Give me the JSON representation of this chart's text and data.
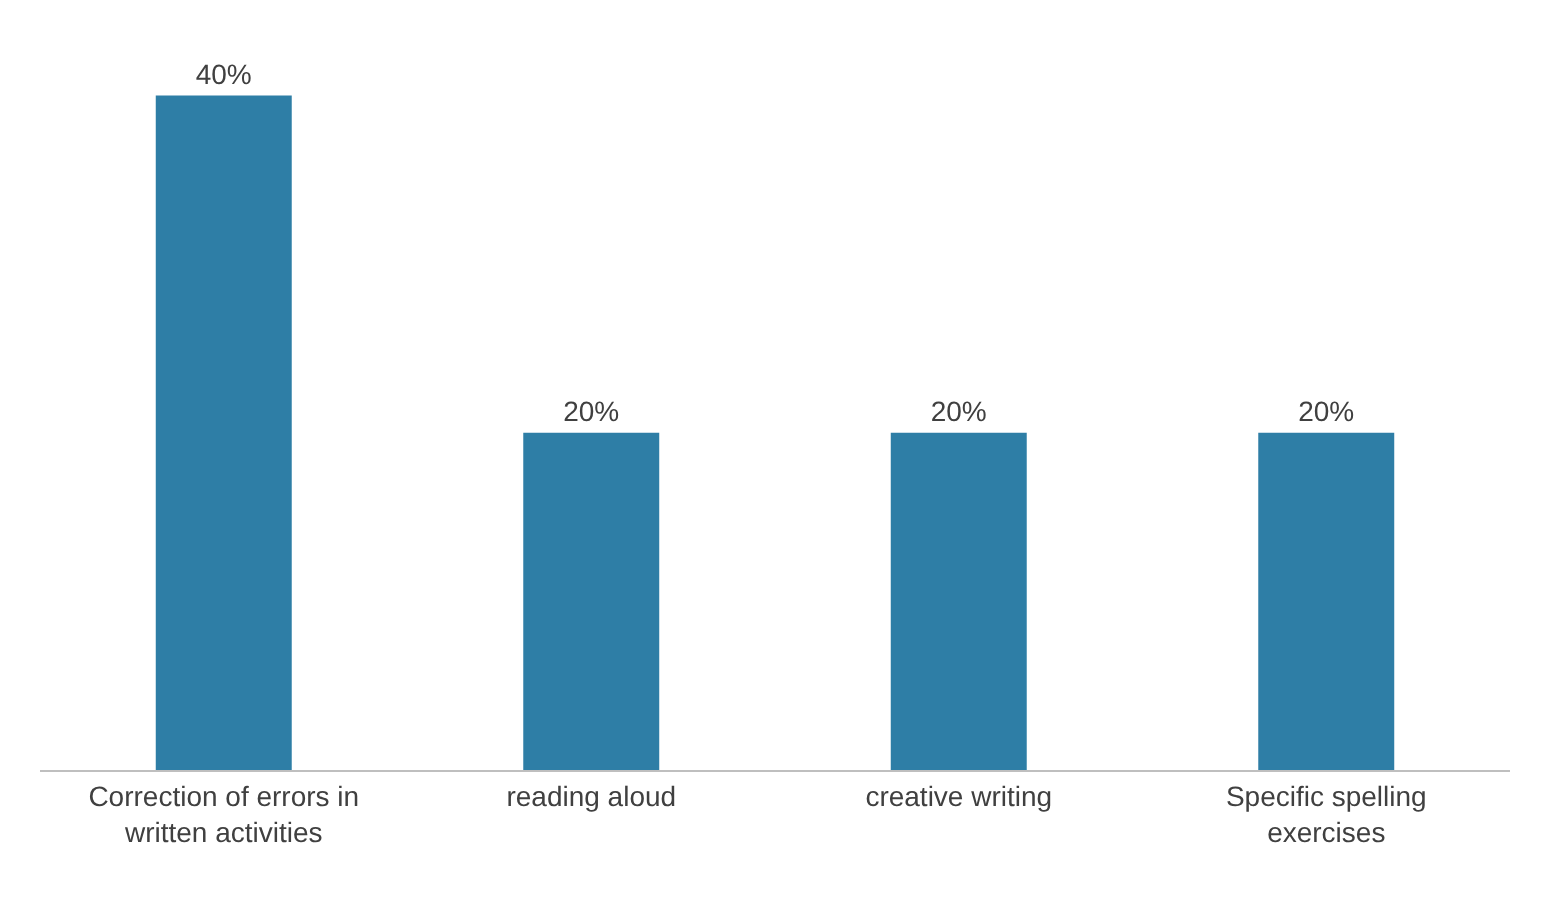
{
  "chart_data": {
    "type": "bar",
    "categories": [
      "Correction of errors in written activities",
      "reading aloud",
      "creative writing",
      "Specific spelling exercises"
    ],
    "values": [
      40,
      20,
      20,
      20
    ],
    "value_labels": [
      "40%",
      "20%",
      "20%",
      "20%"
    ],
    "color": "#2e7ea6"
  }
}
